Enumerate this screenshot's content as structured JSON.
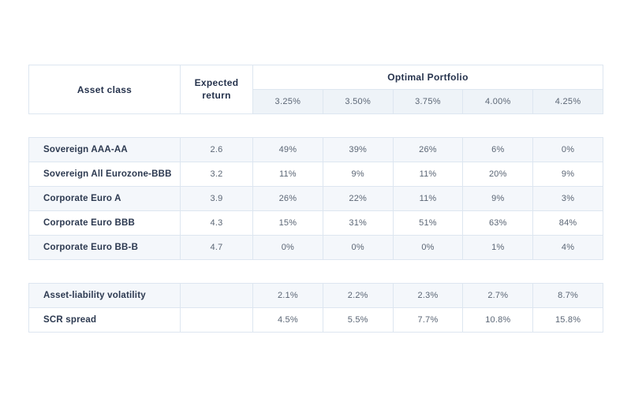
{
  "chart_data": {
    "type": "table",
    "title": "Optimal Portfolio",
    "header": {
      "asset_class": "Asset class",
      "expected_return": "Expected return",
      "optimal_portfolio": "Optimal Portfolio",
      "target_returns": [
        "3.25%",
        "3.50%",
        "3.75%",
        "4.00%",
        "4.25%"
      ]
    },
    "asset_rows": [
      {
        "label": "Sovereign AAA-AA",
        "expected_return": "2.6",
        "allocations": [
          "49%",
          "39%",
          "26%",
          "6%",
          "0%"
        ]
      },
      {
        "label": "Sovereign All Eurozone-BBB",
        "expected_return": "3.2",
        "allocations": [
          "11%",
          "9%",
          "11%",
          "20%",
          "9%"
        ]
      },
      {
        "label": "Corporate Euro A",
        "expected_return": "3.9",
        "allocations": [
          "26%",
          "22%",
          "11%",
          "9%",
          "3%"
        ]
      },
      {
        "label": "Corporate Euro BBB",
        "expected_return": "4.3",
        "allocations": [
          "15%",
          "31%",
          "51%",
          "63%",
          "84%"
        ]
      },
      {
        "label": "Corporate Euro BB-B",
        "expected_return": "4.7",
        "allocations": [
          "0%",
          "0%",
          "0%",
          "1%",
          "4%"
        ]
      }
    ],
    "summary_rows": [
      {
        "label": "Asset-liability volatility",
        "expected_return": "",
        "values": [
          "2.1%",
          "2.2%",
          "2.3%",
          "2.7%",
          "8.7%"
        ]
      },
      {
        "label": "SCR spread",
        "expected_return": "",
        "values": [
          "4.5%",
          "5.5%",
          "7.7%",
          "10.8%",
          "15.8%"
        ]
      }
    ],
    "layout_hints": {
      "row_striping": "alternating",
      "blocks": [
        "header",
        "asset-allocations",
        "risk-summary"
      ]
    }
  },
  "colors": {
    "row_alt_bg": "#f4f7fb",
    "subheader_bg": "#eef3f8",
    "border": "#dde6f0",
    "heading_text": "#26334d",
    "value_text": "#5b6675"
  }
}
